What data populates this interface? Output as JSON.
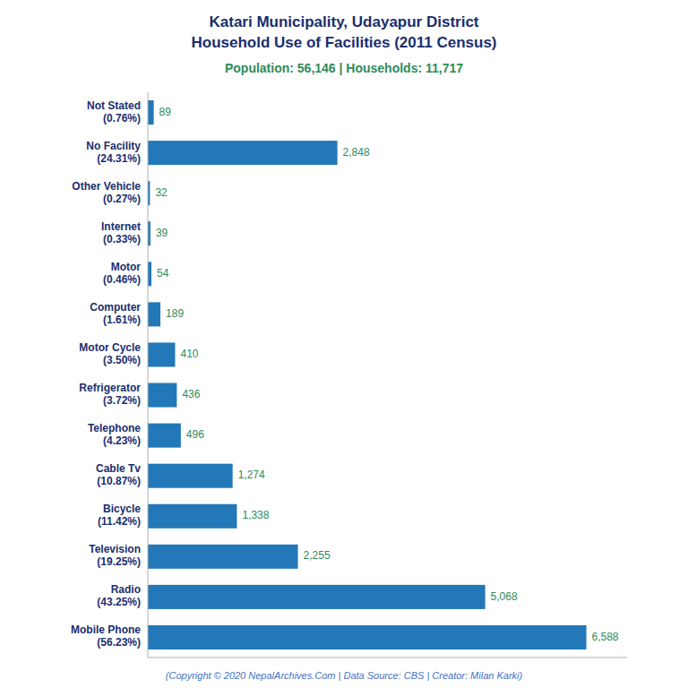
{
  "chart_data": {
    "type": "bar",
    "orientation": "horizontal",
    "title": "Katari Municipality, Udayapur District\nHousehold Use of Facilities (2011 Census)",
    "subtitle": "Population: 56,146 | Households: 11,717",
    "footer": "(Copyright © 2020 NepalArchives.Com | Data Source: CBS | Creator: Milan Karki)",
    "categories": [
      "Mobile Phone\n(56.23%)",
      "Radio\n(43.25%)",
      "Television\n(19.25%)",
      "Bicycle\n(11.42%)",
      "Cable Tv\n(10.87%)",
      "Telephone\n(4.23%)",
      "Refrigerator\n(3.72%)",
      "Motor Cycle\n(3.50%)",
      "Computer\n(1.61%)",
      "Motor\n(0.46%)",
      "Internet\n(0.33%)",
      "Other Vehicle\n(0.27%)",
      "No Facility\n(24.31%)",
      "Not Stated\n(0.76%)"
    ],
    "values": [
      6588,
      5068,
      2255,
      1338,
      1274,
      496,
      436,
      410,
      189,
      54,
      39,
      32,
      2848,
      89
    ],
    "value_labels": [
      "6,588",
      "5,068",
      "2,255",
      "1,338",
      "1,274",
      "496",
      "436",
      "410",
      "189",
      "54",
      "39",
      "32",
      "2,848",
      "89"
    ],
    "data_labels": true,
    "color": "#2278b8",
    "xlim": [
      0,
      7200
    ],
    "tick_labels": "y",
    "grid": false
  }
}
